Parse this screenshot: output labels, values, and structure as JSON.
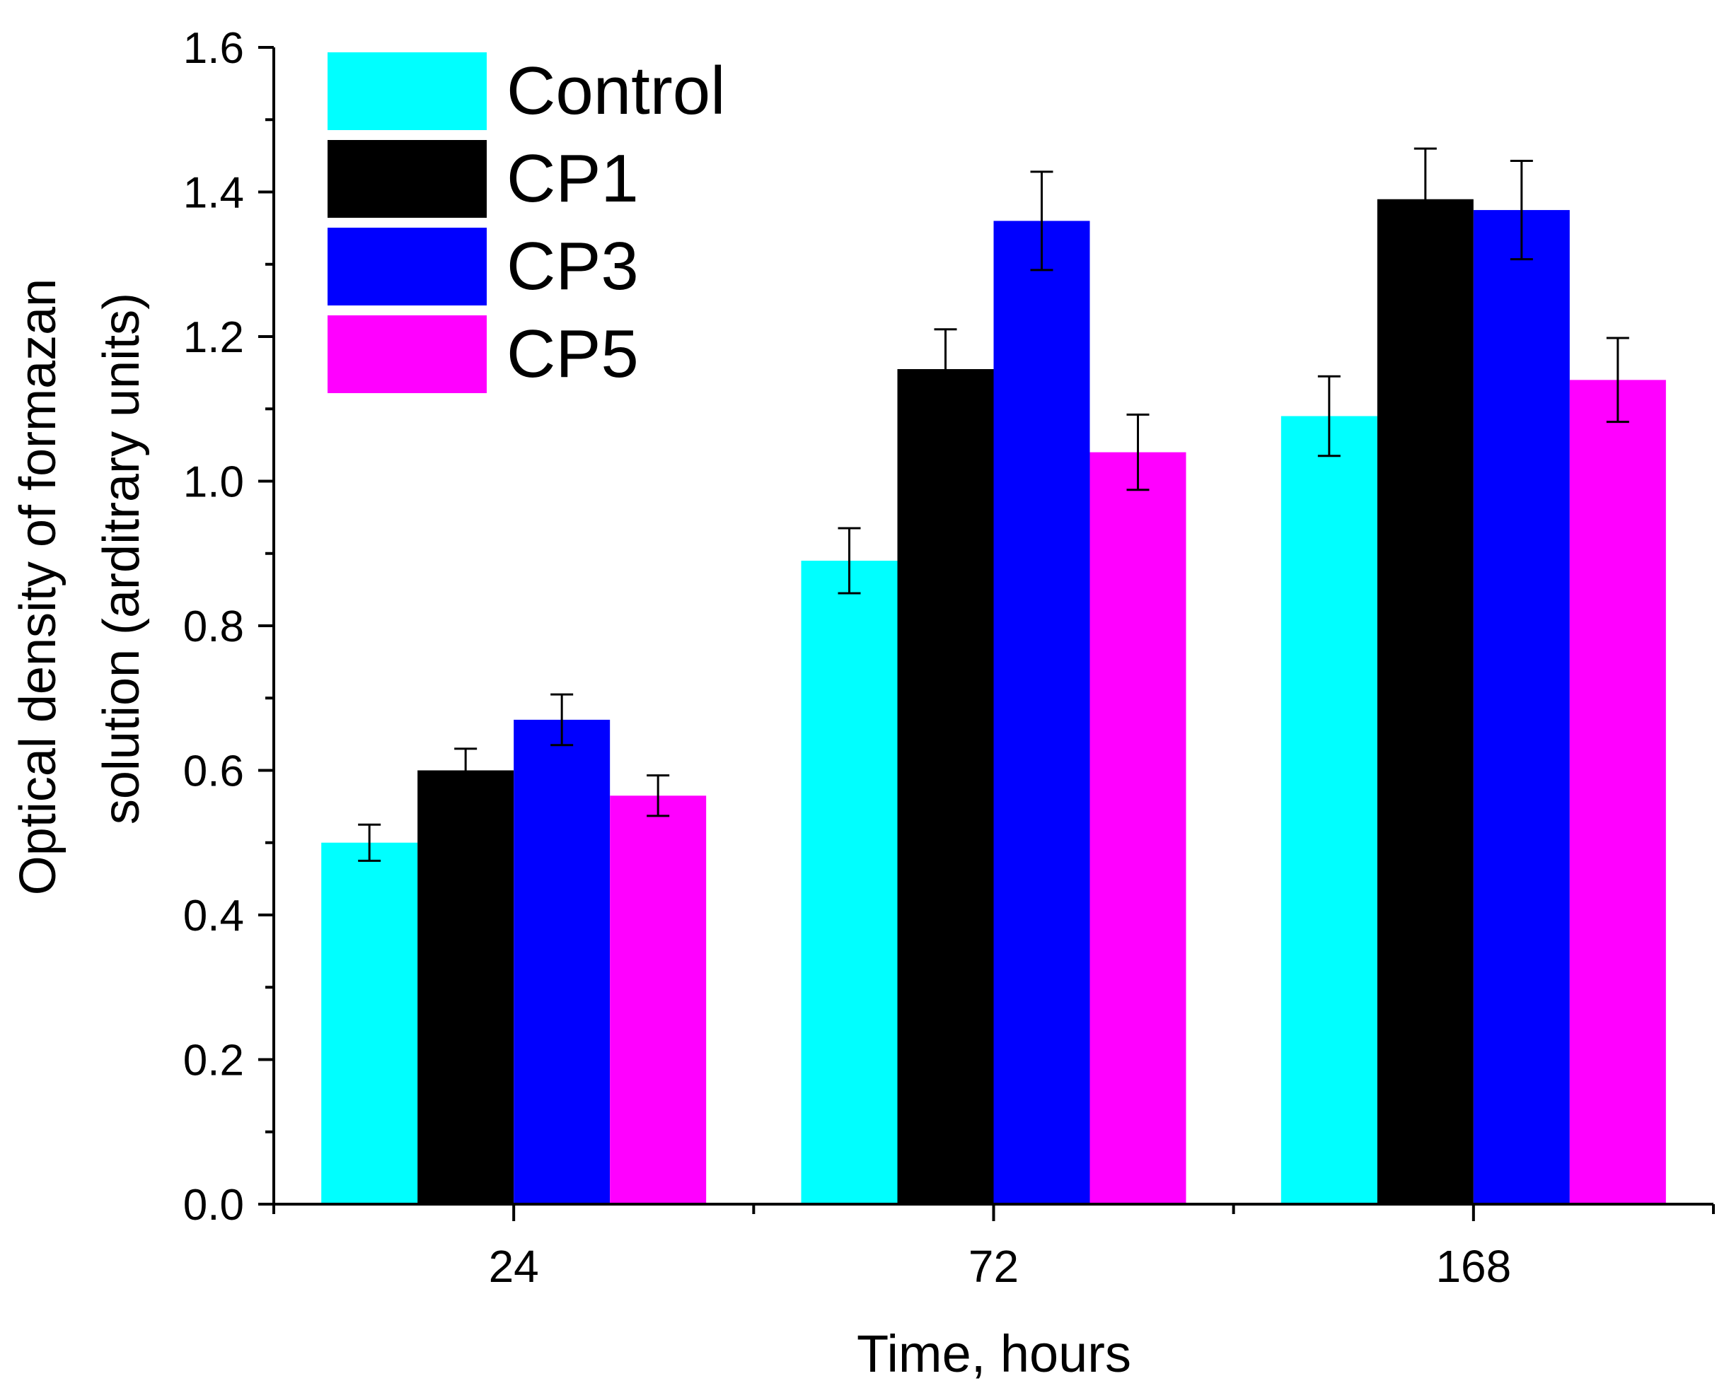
{
  "chart_data": {
    "type": "bar",
    "xlabel": "Time, hours",
    "ylabel_line1": "Optical density of formazan",
    "ylabel_line2": "solution (arditrary units)",
    "categories": [
      "24",
      "72",
      "168"
    ],
    "ylim": [
      0,
      1.6
    ],
    "y_ticks": [
      "0.0",
      "0.2",
      "0.4",
      "0.6",
      "0.8",
      "1.0",
      "1.2",
      "1.4",
      "1.6"
    ],
    "legend_position": "top-left",
    "grid": false,
    "series": [
      {
        "name": "Control",
        "color": "#00FFFF",
        "values": [
          0.5,
          0.89,
          1.09
        ],
        "errors": [
          0.025,
          0.045,
          0.055
        ]
      },
      {
        "name": "CP1",
        "color": "#000000",
        "values": [
          0.6,
          1.155,
          1.39
        ],
        "errors": [
          0.03,
          0.055,
          0.07
        ]
      },
      {
        "name": "CP3",
        "color": "#0000FF",
        "values": [
          0.67,
          1.36,
          1.375
        ],
        "errors": [
          0.035,
          0.068,
          0.068
        ]
      },
      {
        "name": "CP5",
        "color": "#FF00FF",
        "values": [
          0.565,
          1.04,
          1.14
        ],
        "errors": [
          0.028,
          0.052,
          0.058
        ]
      }
    ]
  }
}
